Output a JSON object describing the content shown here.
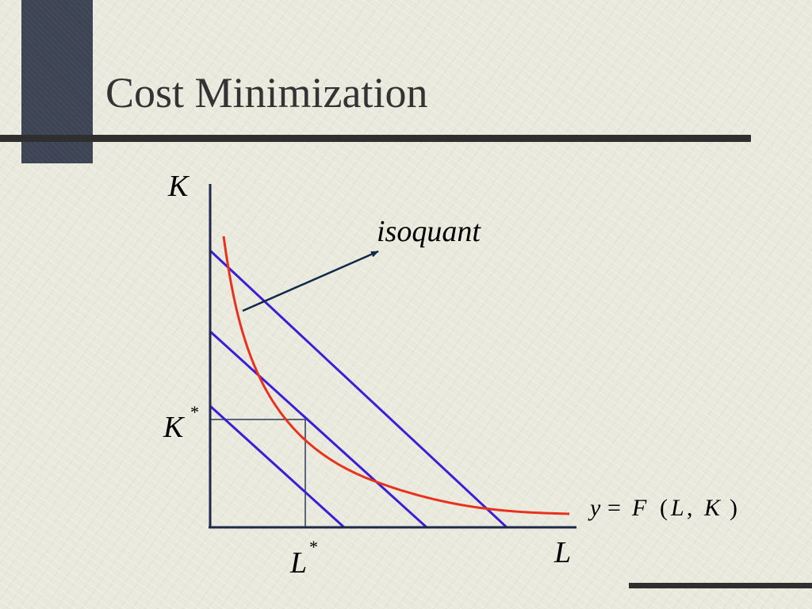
{
  "slide": {
    "title": "Cost Minimization"
  },
  "diagram": {
    "y_axis_label": "K",
    "x_axis_label": "L",
    "k_star_label": "K",
    "l_star_label": "L",
    "star_mark": "*",
    "curve_label": "isoquant",
    "production_function": {
      "y": "y",
      "eq": "=",
      "F": "F",
      "open": "(",
      "L": "L",
      "comma": ",",
      "K": "K",
      "close": ")"
    },
    "colors": {
      "isoquant": "#e8321e",
      "isocost": "#3a1fd6",
      "axes": "#1e2a4a",
      "arrow": "#0f2a4a",
      "guides": "#2a3a5a"
    }
  }
}
